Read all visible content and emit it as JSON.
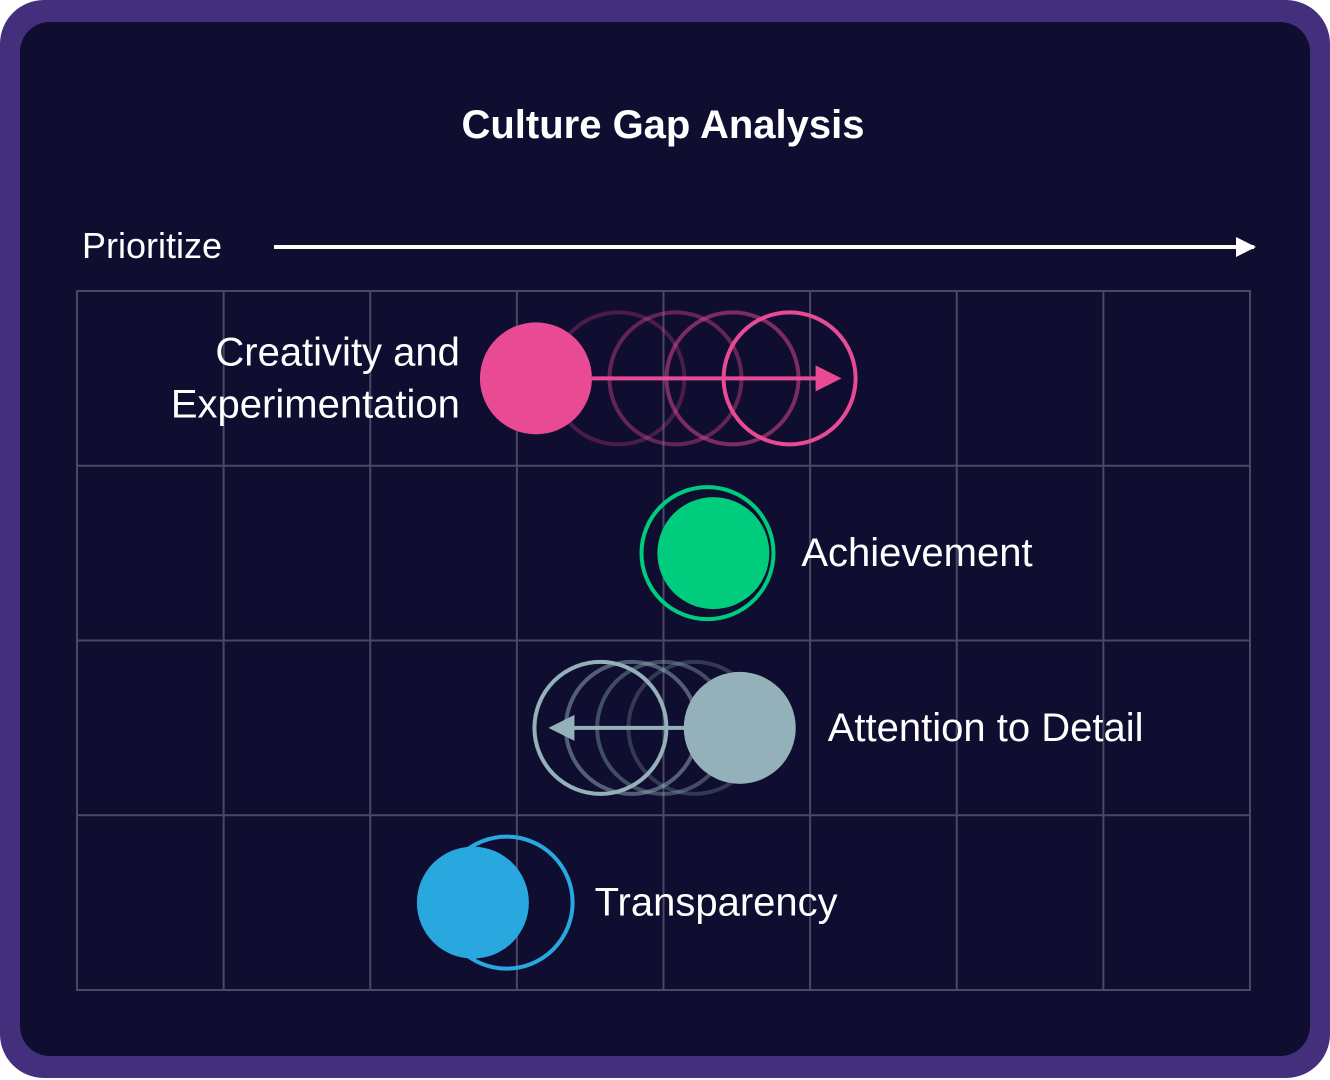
{
  "chart_data": {
    "type": "scatter",
    "title": "Culture Gap Analysis",
    "xlabel": "Prioritize",
    "xlim": [
      0,
      8
    ],
    "grid": true,
    "rows": [
      {
        "name": "Creativity and Experimentation",
        "label_lines": [
          "Creativity and",
          "Experimentation"
        ],
        "label_side": "left",
        "current": 3.13,
        "target": 4.86,
        "color": "#e84a93",
        "direction": "increase"
      },
      {
        "name": "Achievement",
        "label_lines": [
          "Achievement"
        ],
        "label_side": "right",
        "current": 4.34,
        "target": 4.3,
        "color": "#00cc7e",
        "direction": "none"
      },
      {
        "name": "Attention to Detail",
        "label_lines": [
          "Attention to Detail"
        ],
        "label_side": "right",
        "current": 4.52,
        "target": 3.57,
        "color": "#94b1b9",
        "direction": "decrease"
      },
      {
        "name": "Transparency",
        "label_lines": [
          "Transparency"
        ],
        "label_side": "right",
        "current": 2.7,
        "target": 2.93,
        "color": "#29a8e0",
        "direction": "none"
      }
    ]
  }
}
